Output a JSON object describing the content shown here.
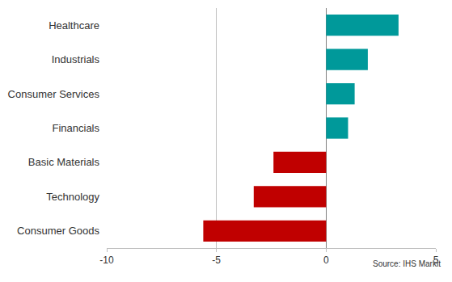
{
  "chart_data": {
    "type": "bar",
    "orientation": "horizontal",
    "categories": [
      "Healthcare",
      "Industrials",
      "Consumer Services",
      "Financials",
      "Basic Materials",
      "Technology",
      "Consumer Goods"
    ],
    "values": [
      3.3,
      1.9,
      1.3,
      1.0,
      -2.4,
      -3.3,
      -5.6
    ],
    "colors": [
      "#00999a",
      "#00999a",
      "#00999a",
      "#00999a",
      "#c00000",
      "#c00000",
      "#c00000"
    ],
    "xlim": [
      -10,
      5
    ],
    "xticks": [
      -10,
      -5,
      0,
      5
    ],
    "grid": true,
    "annotations": [
      "Source: IHS Markit"
    ]
  }
}
